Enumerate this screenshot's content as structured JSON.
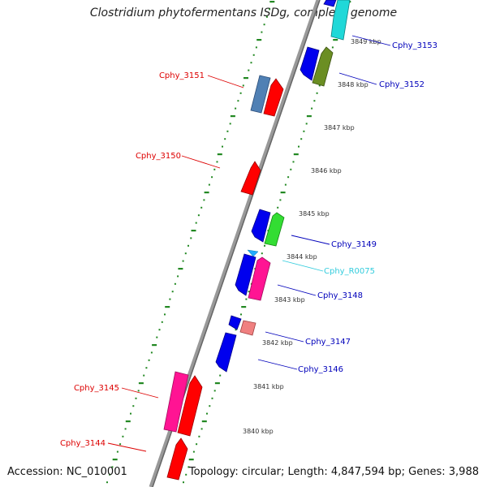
{
  "title": "Clostridium phytofermentans ISDg, complete genome",
  "footer": {
    "accession": "Accession: NC_010001",
    "topology": "Topology: circular; Length: 4,847,594 bp; Genes: 3,988"
  },
  "kbp_labels": [
    "3849 kbp",
    "3848 kbp",
    "3847 kbp",
    "3846 kbp",
    "3845 kbp",
    "3844 kbp",
    "3843 kbp",
    "3842 kbp",
    "3841 kbp",
    "3840 kbp"
  ],
  "gene_labels": {
    "left": [
      "Cphy_3151",
      "Cphy_3150",
      "Cphy_3145",
      "Cphy_3144"
    ],
    "right": [
      "Cphy_3153",
      "Cphy_3152",
      "Cphy_3149",
      "Cphy_R0075",
      "Cphy_3148",
      "Cphy_3147",
      "Cphy_3146"
    ]
  },
  "colors": {
    "left_label": "#dd0000",
    "right_label": "#0000bb",
    "rna_label": "#33ccdd",
    "backbone": "#888888",
    "tick": "#228822"
  }
}
